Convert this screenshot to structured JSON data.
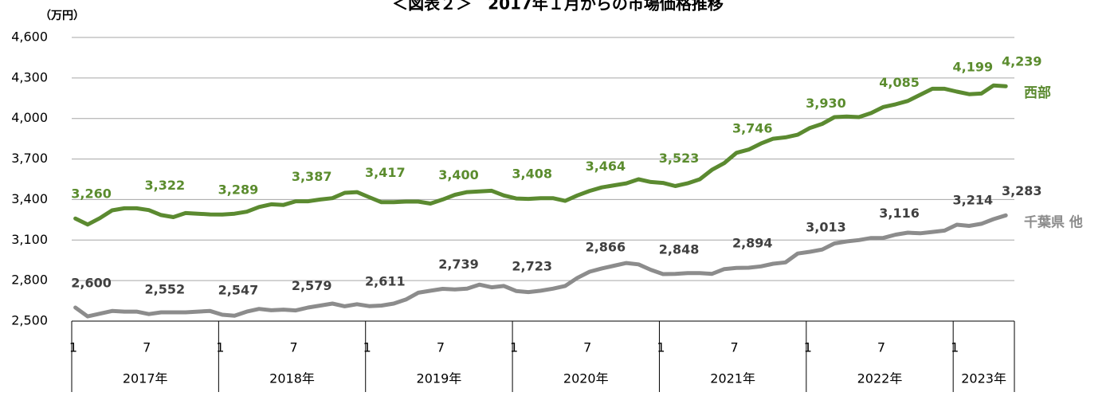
{
  "chart_data": {
    "type": "line",
    "title": "＜図表２＞　2017年１月からの市場価格推移",
    "y_unit": "（万円）",
    "ylim": [
      2500,
      4600
    ],
    "yticks": [
      {
        "value": 2500,
        "label": "2,500"
      },
      {
        "value": 2800,
        "label": "2,800"
      },
      {
        "value": 3100,
        "label": "3,100"
      },
      {
        "value": 3400,
        "label": "3,400"
      },
      {
        "value": 3700,
        "label": "3,700"
      },
      {
        "value": 4000,
        "label": "4,000"
      },
      {
        "value": 4300,
        "label": "4,300"
      },
      {
        "value": 4600,
        "label": "4,600"
      }
    ],
    "grid": true,
    "categories": [
      "1",
      null,
      null,
      null,
      null,
      null,
      "7",
      null,
      null,
      null,
      null,
      null,
      "1",
      null,
      null,
      null,
      null,
      null,
      "7",
      null,
      null,
      null,
      null,
      null,
      "1",
      null,
      null,
      null,
      null,
      null,
      "7",
      null,
      null,
      null,
      null,
      null,
      "1",
      null,
      null,
      null,
      null,
      null,
      "7",
      null,
      null,
      null,
      null,
      null,
      "1",
      null,
      null,
      null,
      null,
      null,
      "7",
      null,
      null,
      null,
      null,
      null,
      "1",
      null,
      null,
      null,
      null,
      null,
      "7",
      null,
      null,
      null,
      null,
      null,
      "1",
      null,
      null,
      null,
      null
    ],
    "groups": [
      "2017年",
      "2018年",
      "2019年",
      "2020年",
      "2021年",
      "2022年",
      "2023年"
    ],
    "series": [
      {
        "name": "西部",
        "color": "#5b8a30",
        "label_color": "#5b8c2e",
        "values": [
          3260,
          3215,
          3262,
          3320,
          3335,
          3335,
          3322,
          3285,
          3270,
          3300,
          3295,
          3290,
          3289,
          3295,
          3310,
          3345,
          3365,
          3360,
          3387,
          3387,
          3400,
          3410,
          3450,
          3455,
          3417,
          3380,
          3380,
          3385,
          3385,
          3370,
          3400,
          3435,
          3455,
          3460,
          3465,
          3430,
          3408,
          3405,
          3410,
          3410,
          3390,
          3430,
          3464,
          3490,
          3505,
          3520,
          3550,
          3530,
          3523,
          3500,
          3520,
          3550,
          3620,
          3670,
          3746,
          3770,
          3815,
          3850,
          3860,
          3880,
          3930,
          3960,
          4010,
          4015,
          4010,
          4040,
          4085,
          4105,
          4130,
          4175,
          4220,
          4220,
          4199,
          4180,
          4185,
          4245,
          4239
        ],
        "value_labels": [
          "3,260",
          null,
          null,
          null,
          null,
          null,
          "3,322",
          null,
          null,
          null,
          null,
          null,
          "3,289",
          null,
          null,
          null,
          null,
          null,
          "3,387",
          null,
          null,
          null,
          null,
          null,
          "3,417",
          null,
          null,
          null,
          null,
          null,
          "3,400",
          null,
          null,
          null,
          null,
          null,
          "3,408",
          null,
          null,
          null,
          null,
          null,
          "3,464",
          null,
          null,
          null,
          null,
          null,
          "3,523",
          null,
          null,
          null,
          null,
          null,
          "3,746",
          null,
          null,
          null,
          null,
          null,
          "3,930",
          null,
          null,
          null,
          null,
          null,
          "4,085",
          null,
          null,
          null,
          null,
          null,
          "4,199",
          null,
          null,
          null,
          "4,239"
        ]
      },
      {
        "name": "千葉県 他",
        "color": "#8c8c8c",
        "label_color": "#404040",
        "values": [
          2600,
          2535,
          2555,
          2575,
          2570,
          2570,
          2552,
          2565,
          2565,
          2565,
          2570,
          2575,
          2547,
          2540,
          2570,
          2590,
          2580,
          2585,
          2579,
          2600,
          2615,
          2630,
          2610,
          2625,
          2611,
          2615,
          2630,
          2660,
          2710,
          2725,
          2739,
          2735,
          2740,
          2770,
          2750,
          2760,
          2723,
          2715,
          2725,
          2740,
          2760,
          2820,
          2866,
          2890,
          2910,
          2930,
          2920,
          2880,
          2848,
          2850,
          2855,
          2855,
          2850,
          2885,
          2894,
          2895,
          2905,
          2925,
          2935,
          3000,
          3013,
          3030,
          3075,
          3090,
          3100,
          3115,
          3116,
          3140,
          3155,
          3150,
          3160,
          3170,
          3214,
          3205,
          3220,
          3255,
          3283
        ],
        "value_labels": [
          "2,600",
          null,
          null,
          null,
          null,
          null,
          "2,552",
          null,
          null,
          null,
          null,
          null,
          "2,547",
          null,
          null,
          null,
          null,
          null,
          "2,579",
          null,
          null,
          null,
          null,
          null,
          "2,611",
          null,
          null,
          null,
          null,
          null,
          "2,739",
          null,
          null,
          null,
          null,
          null,
          "2,723",
          null,
          null,
          null,
          null,
          null,
          "2,866",
          null,
          null,
          null,
          null,
          null,
          "2,848",
          null,
          null,
          null,
          null,
          null,
          "2,894",
          null,
          null,
          null,
          null,
          null,
          "3,013",
          null,
          null,
          null,
          null,
          null,
          "3,116",
          null,
          null,
          null,
          null,
          null,
          "3,214",
          null,
          null,
          null,
          "3,283"
        ],
        "name_color": "#8c8c8c"
      }
    ]
  }
}
